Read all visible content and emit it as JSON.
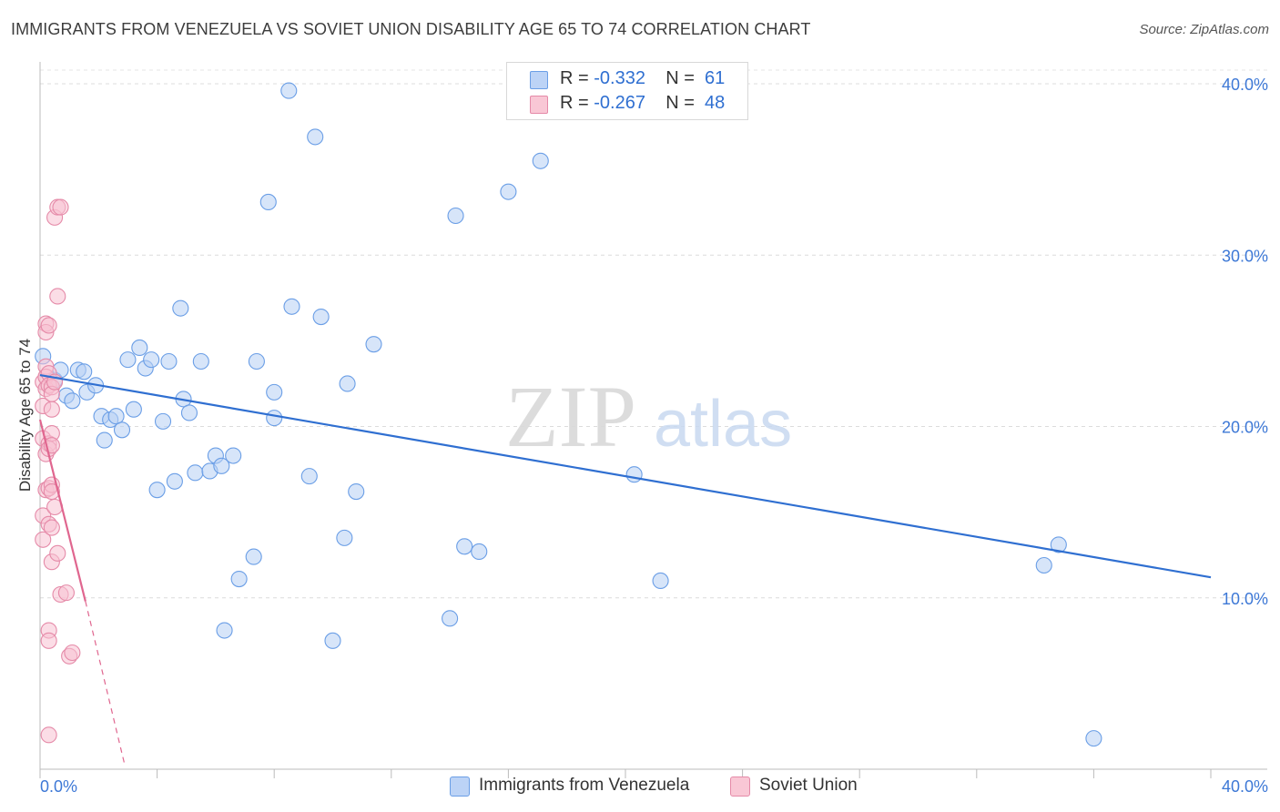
{
  "header": {
    "title": "IMMIGRANTS FROM VENEZUELA VS SOVIET UNION DISABILITY AGE 65 TO 74 CORRELATION CHART",
    "source": "Source: ZipAtlas.com"
  },
  "watermark": {
    "zip": "ZIP",
    "atlas": "atlas"
  },
  "legend": {
    "rows": [
      {
        "r_label": "R =",
        "r_value": "-0.332",
        "n_label": "N =",
        "n_value": "61",
        "color": "#aac8f5"
      },
      {
        "r_label": "R =",
        "r_value": "-0.267",
        "n_label": "N =",
        "n_value": "48",
        "color": "#f7b6c8"
      }
    ]
  },
  "bottom_legend": [
    {
      "label": "Immigrants from Venezuela",
      "color": "#aac8f5"
    },
    {
      "label": "Soviet Union",
      "color": "#f7b6c8"
    }
  ],
  "chart_data": {
    "type": "scatter",
    "title": "IMMIGRANTS FROM VENEZUELA VS SOVIET UNION DISABILITY AGE 65 TO 74 CORRELATION CHART",
    "xlabel": "",
    "ylabel": "Disability Age 65 to 74",
    "xlim": [
      0,
      40
    ],
    "ylim": [
      0,
      40.8
    ],
    "x_tick_labels": [
      "0.0%",
      "40.0%"
    ],
    "y_ticks": [
      10,
      20,
      30,
      40
    ],
    "y_tick_labels": [
      "10.0%",
      "20.0%",
      "30.0%",
      "40.0%"
    ],
    "grid": true,
    "legend_position": "top-center",
    "series": [
      {
        "name": "Immigrants from Venezuela",
        "color": "#6a9ee6",
        "fill": "#b7d0f4",
        "points": [
          [
            0.1,
            24.1
          ],
          [
            0.5,
            22.7
          ],
          [
            0.7,
            23.3
          ],
          [
            0.9,
            21.8
          ],
          [
            1.1,
            21.5
          ],
          [
            1.3,
            23.3
          ],
          [
            1.5,
            23.2
          ],
          [
            1.6,
            22.0
          ],
          [
            1.9,
            22.4
          ],
          [
            2.1,
            20.6
          ],
          [
            2.2,
            19.2
          ],
          [
            2.4,
            20.4
          ],
          [
            2.6,
            20.6
          ],
          [
            2.8,
            19.8
          ],
          [
            3.0,
            23.9
          ],
          [
            3.2,
            21.0
          ],
          [
            3.4,
            24.6
          ],
          [
            3.6,
            23.4
          ],
          [
            3.8,
            23.9
          ],
          [
            4.0,
            16.3
          ],
          [
            4.2,
            20.3
          ],
          [
            4.4,
            23.8
          ],
          [
            4.6,
            16.8
          ],
          [
            4.8,
            26.9
          ],
          [
            4.9,
            21.6
          ],
          [
            5.1,
            20.8
          ],
          [
            5.3,
            17.3
          ],
          [
            5.5,
            23.8
          ],
          [
            5.8,
            17.4
          ],
          [
            6.0,
            18.3
          ],
          [
            6.2,
            17.7
          ],
          [
            6.3,
            8.1
          ],
          [
            6.6,
            18.3
          ],
          [
            6.8,
            11.1
          ],
          [
            7.3,
            12.4
          ],
          [
            7.4,
            23.8
          ],
          [
            7.8,
            33.1
          ],
          [
            8.0,
            22.0
          ],
          [
            8.0,
            20.5
          ],
          [
            8.5,
            39.6
          ],
          [
            8.6,
            27.0
          ],
          [
            9.2,
            17.1
          ],
          [
            9.4,
            36.9
          ],
          [
            9.6,
            26.4
          ],
          [
            10.0,
            7.5
          ],
          [
            10.4,
            13.5
          ],
          [
            10.5,
            22.5
          ],
          [
            10.8,
            16.2
          ],
          [
            11.4,
            24.8
          ],
          [
            14.0,
            8.8
          ],
          [
            14.2,
            32.3
          ],
          [
            14.5,
            13.0
          ],
          [
            15.0,
            12.7
          ],
          [
            16.0,
            33.7
          ],
          [
            17.1,
            35.5
          ],
          [
            20.3,
            17.2
          ],
          [
            21.2,
            11.0
          ],
          [
            34.3,
            11.9
          ],
          [
            34.8,
            13.1
          ],
          [
            36.0,
            1.8
          ]
        ]
      },
      {
        "name": "Soviet Union",
        "color": "#e58aa8",
        "fill": "#f7c1d1",
        "points": [
          [
            0.1,
            22.6
          ],
          [
            0.1,
            21.2
          ],
          [
            0.1,
            19.3
          ],
          [
            0.1,
            14.8
          ],
          [
            0.1,
            13.4
          ],
          [
            0.2,
            26.0
          ],
          [
            0.2,
            25.5
          ],
          [
            0.2,
            23.5
          ],
          [
            0.2,
            22.9
          ],
          [
            0.2,
            22.2
          ],
          [
            0.2,
            18.4
          ],
          [
            0.2,
            16.3
          ],
          [
            0.3,
            25.9
          ],
          [
            0.3,
            23.1
          ],
          [
            0.3,
            22.4
          ],
          [
            0.3,
            19.0
          ],
          [
            0.3,
            18.7
          ],
          [
            0.3,
            16.4
          ],
          [
            0.3,
            14.3
          ],
          [
            0.3,
            8.1
          ],
          [
            0.3,
            7.5
          ],
          [
            0.3,
            2.0
          ],
          [
            0.4,
            22.3
          ],
          [
            0.4,
            21.9
          ],
          [
            0.4,
            21.0
          ],
          [
            0.4,
            19.6
          ],
          [
            0.4,
            18.9
          ],
          [
            0.4,
            16.6
          ],
          [
            0.4,
            16.2
          ],
          [
            0.4,
            14.1
          ],
          [
            0.4,
            12.1
          ],
          [
            0.5,
            32.2
          ],
          [
            0.5,
            15.3
          ],
          [
            0.5,
            22.6
          ],
          [
            0.6,
            32.8
          ],
          [
            0.6,
            27.6
          ],
          [
            0.6,
            12.6
          ],
          [
            0.7,
            32.8
          ],
          [
            0.7,
            10.2
          ],
          [
            0.9,
            10.3
          ],
          [
            1.0,
            6.6
          ],
          [
            1.1,
            6.8
          ]
        ]
      }
    ],
    "trend_lines": [
      {
        "series": "Immigrants from Venezuela",
        "x": [
          0,
          40
        ],
        "y": [
          23.0,
          11.2
        ],
        "style": "solid"
      },
      {
        "series": "Soviet Union",
        "x": [
          0,
          1.55
        ],
        "y": [
          20.4,
          9.8
        ],
        "style": "solid"
      },
      {
        "series": "Soviet Union",
        "x": [
          1.55,
          2.9
        ],
        "y": [
          9.8,
          0.2
        ],
        "style": "dashed"
      }
    ]
  }
}
